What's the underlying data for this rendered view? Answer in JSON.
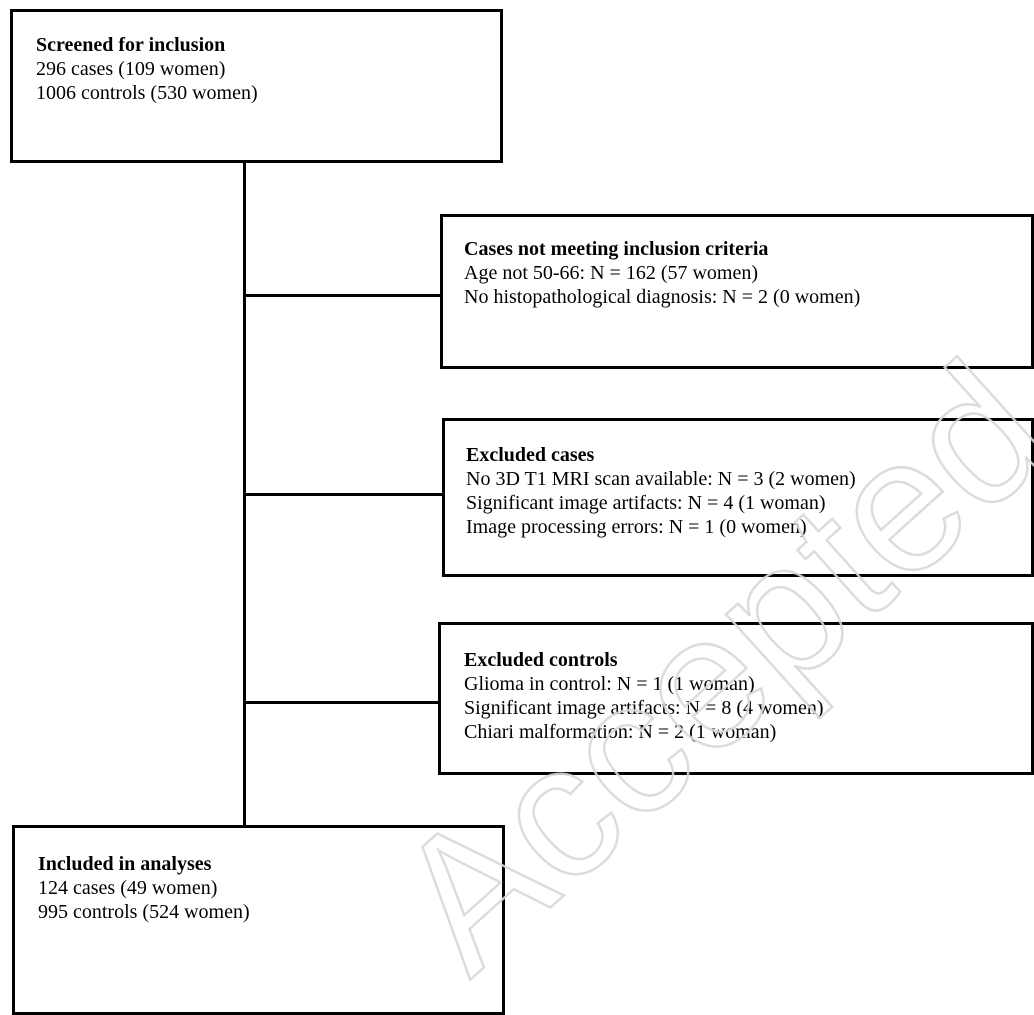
{
  "flow": {
    "screened": {
      "title": "Screened for inclusion",
      "lines": [
        "296 cases (109 women)",
        "1006 controls (530 women)"
      ]
    },
    "not_meeting": {
      "title": "Cases not meeting inclusion criteria",
      "lines": [
        "Age not 50-66: N = 162 (57 women)",
        "No histopathological diagnosis: N = 2 (0 women)"
      ]
    },
    "excluded_cases": {
      "title": "Excluded cases",
      "lines": [
        "No 3D T1 MRI scan available: N = 3 (2 women)",
        "Significant image artifacts: N = 4 (1 woman)",
        "Image processing errors: N = 1 (0 women)"
      ]
    },
    "excluded_controls": {
      "title": "Excluded controls",
      "lines": [
        "Glioma in control: N = 1 (1 woman)",
        "Significant image artifacts: N = 8 (4 women)",
        "Chiari malformation: N = 2 (1 woman)"
      ]
    },
    "included": {
      "title": "Included in analyses",
      "lines": [
        "124 cases (49 women)",
        "995 controls (524 women)"
      ]
    }
  },
  "watermark": {
    "text": "Accepted manuscript",
    "color": "#d9d9d9"
  }
}
